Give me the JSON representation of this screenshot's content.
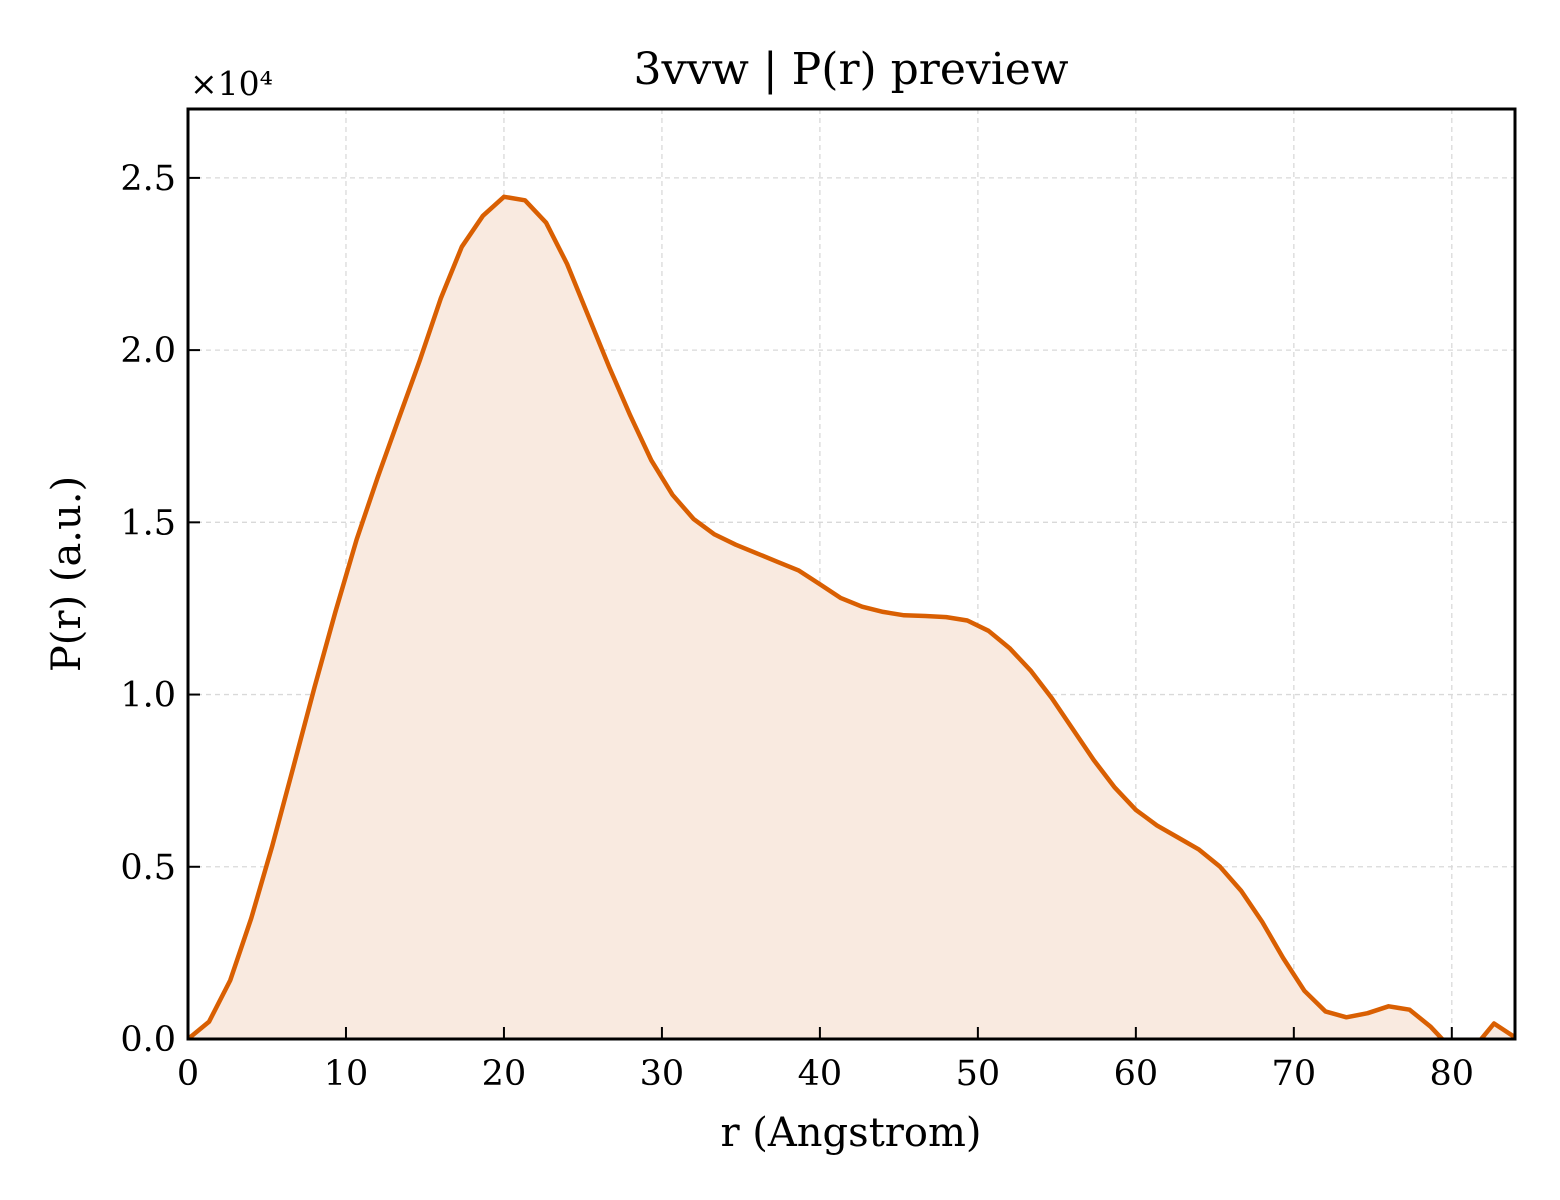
{
  "chart_data": {
    "type": "area",
    "title": "3vvw | P(r) preview",
    "xlabel": "r (Angstrom)",
    "ylabel": "P(r) (a.u.)",
    "y_offset_text": "×10⁴",
    "xlim": [
      0,
      84
    ],
    "ylim": [
      0,
      2.7
    ],
    "xticks": [
      0,
      10,
      20,
      30,
      40,
      50,
      60,
      70,
      80
    ],
    "yticks": [
      0.0,
      0.5,
      1.0,
      1.5,
      2.0,
      2.5
    ],
    "xtick_labels": [
      "0",
      "10",
      "20",
      "30",
      "40",
      "50",
      "60",
      "70",
      "80"
    ],
    "ytick_labels": [
      "0.0",
      "0.5",
      "1.0",
      "1.5",
      "2.0",
      "2.5"
    ],
    "grid": true,
    "line_color": "#d95f02",
    "fill_color": "#f9eae0",
    "series": [
      {
        "x": [
          0,
          1.33,
          2.67,
          4.0,
          5.33,
          6.67,
          8.0,
          9.33,
          10.67,
          12.0,
          13.33,
          14.67,
          16.0,
          17.33,
          18.67,
          20.0,
          21.33,
          22.67,
          24.0,
          25.33,
          26.67,
          28.0,
          29.33,
          30.67,
          32.0,
          33.33,
          34.67,
          36.0,
          37.33,
          38.67,
          40.0,
          41.33,
          42.67,
          44.0,
          45.33,
          46.67,
          48.0,
          49.33,
          50.67,
          52.0,
          53.33,
          54.67,
          56.0,
          57.33,
          58.67,
          60.0,
          61.33,
          62.67,
          64.0,
          65.33,
          66.67,
          68.0,
          69.33,
          70.67,
          72.0,
          73.33,
          74.67,
          76.0,
          77.33,
          78.67,
          80.0,
          81.33,
          82.67,
          84.0
        ],
        "y": [
          0.0,
          0.05,
          0.17,
          0.35,
          0.56,
          0.79,
          1.02,
          1.24,
          1.45,
          1.63,
          1.8,
          1.97,
          2.15,
          2.3,
          2.39,
          2.445,
          2.435,
          2.37,
          2.25,
          2.1,
          1.95,
          1.81,
          1.68,
          1.58,
          1.51,
          1.465,
          1.435,
          1.41,
          1.385,
          1.36,
          1.32,
          1.28,
          1.255,
          1.24,
          1.23,
          1.228,
          1.225,
          1.215,
          1.185,
          1.135,
          1.07,
          0.99,
          0.9,
          0.81,
          0.73,
          0.665,
          0.62,
          0.585,
          0.55,
          0.5,
          0.43,
          0.34,
          0.235,
          0.14,
          0.08,
          0.063,
          0.075,
          0.095,
          0.085,
          0.035,
          -0.03,
          -0.03,
          0.045,
          0.005
        ]
      }
    ]
  }
}
